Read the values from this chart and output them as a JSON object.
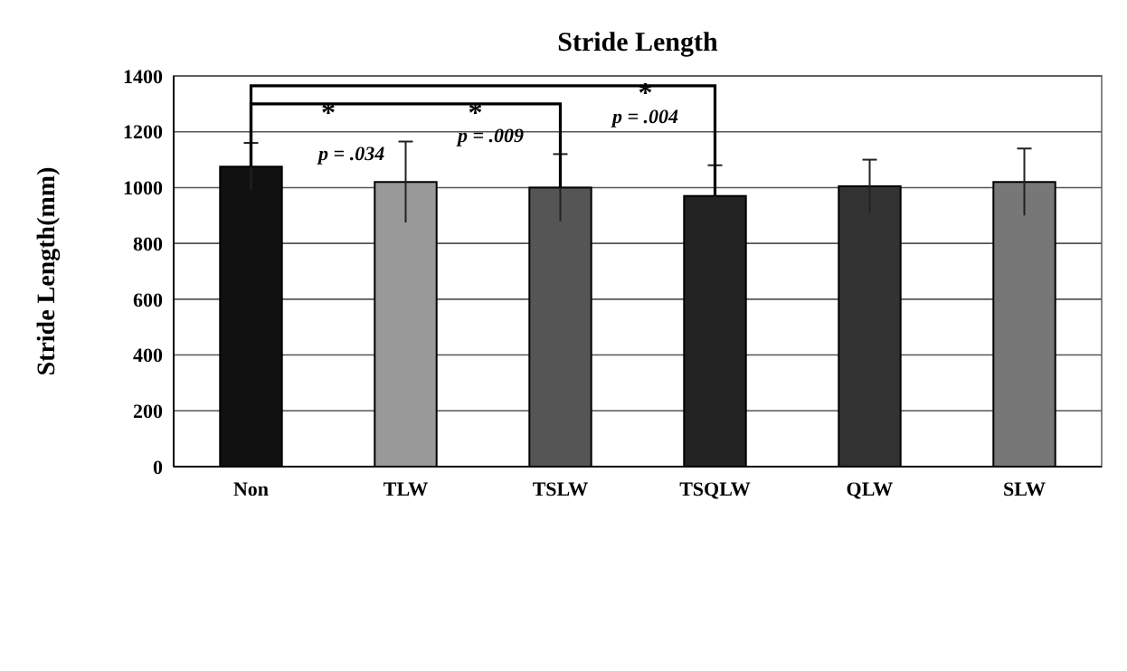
{
  "chart_data": {
    "type": "bar",
    "title": "Stride Length",
    "ylabel": "Stride Length(mm)",
    "categories": [
      "Non",
      "TLW",
      "TSLW",
      "TSQLW",
      "QLW",
      "SLW"
    ],
    "values": [
      1075,
      1020,
      1000,
      970,
      1005,
      1020
    ],
    "errors": [
      85,
      145,
      120,
      110,
      95,
      120
    ],
    "colors": [
      "#111111",
      "#999999",
      "#555555",
      "#222222",
      "#333333",
      "#777777"
    ],
    "ylim": [
      0,
      1400
    ],
    "yticks": [
      0,
      200,
      400,
      600,
      800,
      1000,
      1200,
      1400
    ],
    "grid": "y",
    "annotations": [
      "*",
      "p = .034",
      "*",
      "p = .009",
      "*",
      "p = .004"
    ]
  }
}
